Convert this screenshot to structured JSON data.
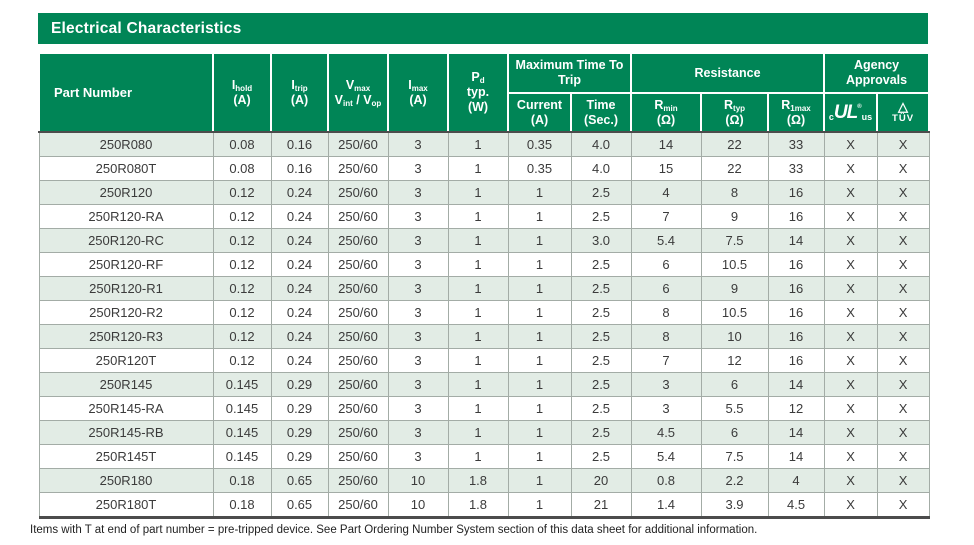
{
  "title": "Electrical Characteristics",
  "colors": {
    "brand_green": "#008556",
    "row_stripe": "#e2ece5",
    "grid_line": "#a3aca6",
    "heavy_rule": "#4c4c4c"
  },
  "header": {
    "part_number": "Part Number",
    "i_hold": {
      "sym": "I",
      "sub": "hold",
      "unit": "(A)"
    },
    "i_trip": {
      "sym": "I",
      "sub": "trip",
      "unit": "(A)"
    },
    "v_max": {
      "sym": "V",
      "sub": "max",
      "sym2": "V",
      "sub2": "int",
      "sep": " / ",
      "sym3": "V",
      "sub3": "op"
    },
    "i_max": {
      "sym": "I",
      "sub": "max",
      "unit": "(A)"
    },
    "p_d": {
      "sym": "P",
      "sub": "d",
      "line2": "typ.",
      "unit": "(W)"
    },
    "max_time_to_trip": {
      "title": "Maximum Time To Trip",
      "current": {
        "label": "Current",
        "unit": "(A)"
      },
      "time": {
        "label": "Time",
        "unit": "(Sec.)"
      }
    },
    "resistance": {
      "title": "Resistance",
      "r_min": {
        "sym": "R",
        "sub": "min",
        "unit": "(Ω)"
      },
      "r_typ": {
        "sym": "R",
        "sub": "typ",
        "unit": "(Ω)"
      },
      "r_1max": {
        "sym": "R",
        "sub": "1max",
        "unit": "(Ω)"
      }
    },
    "agency": {
      "title": "Agency Approvals",
      "ul": {
        "prefix": "c",
        "mark": "UL",
        "reg": "®",
        "suffix": "us"
      },
      "tuv": {
        "symbol": "△",
        "label": "TÜV"
      }
    }
  },
  "table": {
    "row_columns": [
      "part-number",
      "i-hold",
      "i-trip",
      "v-max",
      "i-max",
      "p-d-typ",
      "trip-current",
      "trip-time",
      "r-min",
      "r-typ",
      "r-1max",
      "ul-approval",
      "tuv-approval"
    ],
    "rows": [
      [
        "250R080",
        "0.08",
        "0.16",
        "250/60",
        "3",
        "1",
        "0.35",
        "4.0",
        "14",
        "22",
        "33",
        "X",
        "X"
      ],
      [
        "250R080T",
        "0.08",
        "0.16",
        "250/60",
        "3",
        "1",
        "0.35",
        "4.0",
        "15",
        "22",
        "33",
        "X",
        "X"
      ],
      [
        "250R120",
        "0.12",
        "0.24",
        "250/60",
        "3",
        "1",
        "1",
        "2.5",
        "4",
        "8",
        "16",
        "X",
        "X"
      ],
      [
        "250R120-RA",
        "0.12",
        "0.24",
        "250/60",
        "3",
        "1",
        "1",
        "2.5",
        "7",
        "9",
        "16",
        "X",
        "X"
      ],
      [
        "250R120-RC",
        "0.12",
        "0.24",
        "250/60",
        "3",
        "1",
        "1",
        "3.0",
        "5.4",
        "7.5",
        "14",
        "X",
        "X"
      ],
      [
        "250R120-RF",
        "0.12",
        "0.24",
        "250/60",
        "3",
        "1",
        "1",
        "2.5",
        "6",
        "10.5",
        "16",
        "X",
        "X"
      ],
      [
        "250R120-R1",
        "0.12",
        "0.24",
        "250/60",
        "3",
        "1",
        "1",
        "2.5",
        "6",
        "9",
        "16",
        "X",
        "X"
      ],
      [
        "250R120-R2",
        "0.12",
        "0.24",
        "250/60",
        "3",
        "1",
        "1",
        "2.5",
        "8",
        "10.5",
        "16",
        "X",
        "X"
      ],
      [
        "250R120-R3",
        "0.12",
        "0.24",
        "250/60",
        "3",
        "1",
        "1",
        "2.5",
        "8",
        "10",
        "16",
        "X",
        "X"
      ],
      [
        "250R120T",
        "0.12",
        "0.24",
        "250/60",
        "3",
        "1",
        "1",
        "2.5",
        "7",
        "12",
        "16",
        "X",
        "X"
      ],
      [
        "250R145",
        "0.145",
        "0.29",
        "250/60",
        "3",
        "1",
        "1",
        "2.5",
        "3",
        "6",
        "14",
        "X",
        "X"
      ],
      [
        "250R145-RA",
        "0.145",
        "0.29",
        "250/60",
        "3",
        "1",
        "1",
        "2.5",
        "3",
        "5.5",
        "12",
        "X",
        "X"
      ],
      [
        "250R145-RB",
        "0.145",
        "0.29",
        "250/60",
        "3",
        "1",
        "1",
        "2.5",
        "4.5",
        "6",
        "14",
        "X",
        "X"
      ],
      [
        "250R145T",
        "0.145",
        "0.29",
        "250/60",
        "3",
        "1",
        "1",
        "2.5",
        "5.4",
        "7.5",
        "14",
        "X",
        "X"
      ],
      [
        "250R180",
        "0.18",
        "0.65",
        "250/60",
        "10",
        "1.8",
        "1",
        "20",
        "0.8",
        "2.2",
        "4",
        "X",
        "X"
      ],
      [
        "250R180T",
        "0.18",
        "0.65",
        "250/60",
        "10",
        "1.8",
        "1",
        "21",
        "1.4",
        "3.9",
        "4.5",
        "X",
        "X"
      ]
    ]
  },
  "footnote": "Items with T at end of part number = pre-tripped device. See Part Ordering Number System section of this data sheet for additional information."
}
